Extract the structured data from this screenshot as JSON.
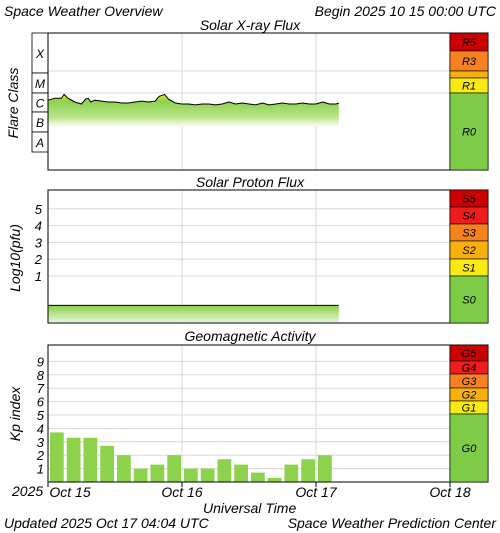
{
  "header": {
    "title": "Space Weather Overview",
    "begin": "Begin 2025 10 15 00:00 UTC"
  },
  "footer": {
    "updated": "Updated 2025 Oct 17 04:04 UTC",
    "source": "Space Weather Prediction Center"
  },
  "x_axis": {
    "label": "Universal Time",
    "start_label": "2025",
    "ticks": [
      "Oct 15",
      "Oct 16",
      "Oct 17",
      "Oct 18"
    ]
  },
  "colors": {
    "r5": "#cc0000",
    "r4": "#ee1c1c",
    "r3": "#f5821f",
    "r2": "#f8b10c",
    "r1": "#f8ea12",
    "r0": "#7ecb47",
    "green": "#8cd24a",
    "yellow": "#f2e91b"
  },
  "chart_data": [
    {
      "type": "area",
      "title": "Solar X-ray Flux",
      "ylabel": "Flare Class",
      "y_classes": [
        "A",
        "B",
        "C",
        "M",
        "X"
      ],
      "scale_labels": [
        "R5",
        "R3",
        "R1",
        "R0"
      ],
      "x_days": [
        0.0,
        0.05,
        0.1,
        0.12,
        0.15,
        0.2,
        0.25,
        0.28,
        0.3,
        0.32,
        0.35,
        0.4,
        0.45,
        0.5,
        0.55,
        0.6,
        0.65,
        0.7,
        0.75,
        0.8,
        0.83,
        0.87,
        0.9,
        0.95,
        1.0,
        1.05,
        1.1,
        1.15,
        1.2,
        1.25,
        1.3,
        1.35,
        1.4,
        1.45,
        1.5,
        1.55,
        1.6,
        1.65,
        1.7,
        1.75,
        1.8,
        1.85,
        1.9,
        1.95,
        2.0,
        2.05,
        2.1,
        2.15,
        2.17
      ],
      "y_log_class": [
        2.65,
        2.75,
        2.75,
        2.95,
        2.75,
        2.55,
        2.45,
        2.7,
        2.75,
        2.55,
        2.65,
        2.6,
        2.55,
        2.55,
        2.5,
        2.5,
        2.55,
        2.6,
        2.55,
        2.6,
        2.85,
        2.95,
        2.7,
        2.5,
        2.45,
        2.45,
        2.4,
        2.45,
        2.45,
        2.4,
        2.45,
        2.55,
        2.45,
        2.5,
        2.45,
        2.4,
        2.5,
        2.4,
        2.45,
        2.5,
        2.45,
        2.45,
        2.5,
        2.45,
        2.45,
        2.55,
        2.45,
        2.45,
        2.5
      ]
    },
    {
      "type": "area",
      "title": "Solar Proton Flux",
      "ylabel": "Log10(pfu)",
      "yticks": [
        1,
        2,
        3,
        4,
        5
      ],
      "scale_labels": [
        "S5",
        "S4",
        "S3",
        "S2",
        "S1",
        "S0"
      ],
      "x_range": [
        0,
        2.17
      ],
      "y_log_pfu": -0.75
    },
    {
      "type": "bar",
      "title": "Geomagnetic Activity",
      "ylabel": "Kp index",
      "yticks": [
        1,
        2,
        3,
        4,
        5,
        6,
        7,
        8,
        9
      ],
      "scale_labels": [
        "G5",
        "G4",
        "G3",
        "G2",
        "G1",
        "G0"
      ],
      "x_days": [
        0.0,
        0.125,
        0.25,
        0.375,
        0.5,
        0.625,
        0.75,
        0.875,
        1.0,
        1.125,
        1.25,
        1.375,
        1.5,
        1.625,
        1.75,
        1.875,
        2.0
      ],
      "values": [
        3.7,
        3.3,
        3.3,
        2.7,
        2.0,
        1.0,
        1.3,
        2.0,
        1.0,
        1.0,
        1.7,
        1.3,
        0.7,
        0.3,
        1.3,
        1.7,
        2.0
      ]
    }
  ]
}
